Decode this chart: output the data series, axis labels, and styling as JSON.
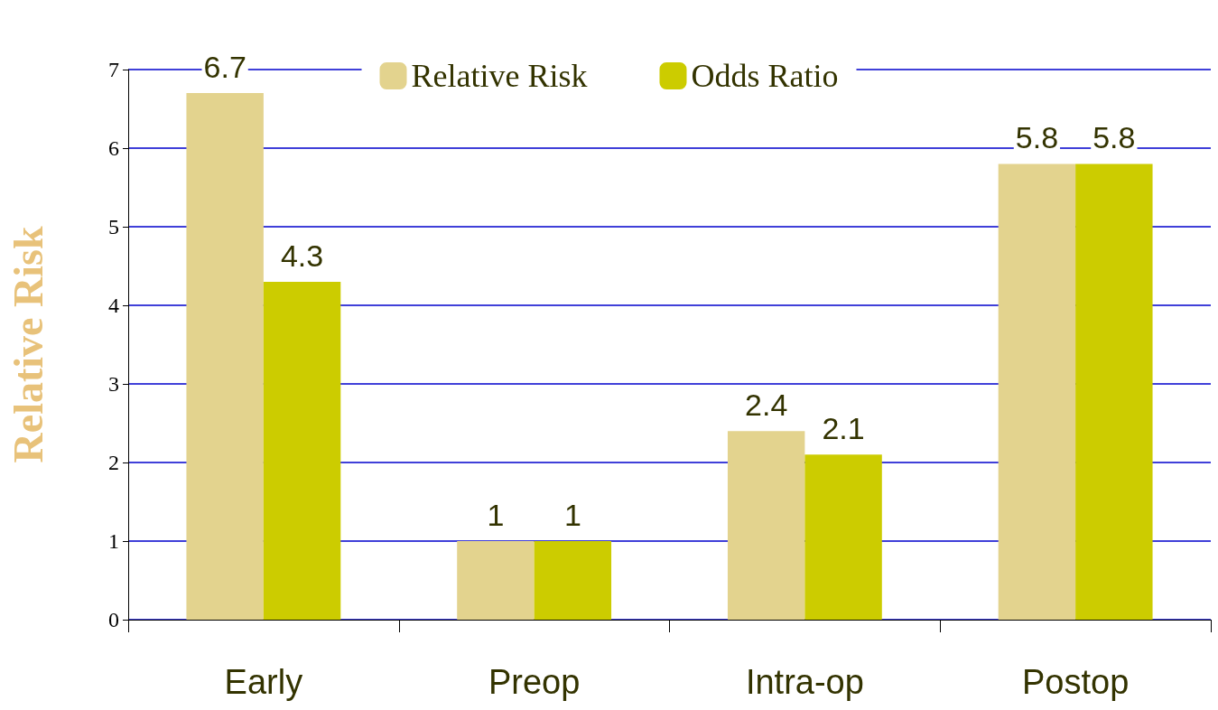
{
  "chart_data": {
    "type": "bar",
    "ylabel": "Relative Risk",
    "categories": [
      "Early",
      "Preop",
      "Intra-op",
      "Postop"
    ],
    "series": [
      {
        "name": "Relative Risk",
        "color": "#e3d38e",
        "values": [
          6.7,
          1,
          2.4,
          5.8
        ]
      },
      {
        "name": "Odds Ratio",
        "color": "#cccc00",
        "values": [
          4.3,
          1,
          2.1,
          5.8
        ]
      }
    ],
    "ylim": [
      0,
      7
    ],
    "yticks": [
      0,
      1,
      2,
      3,
      4,
      5,
      6,
      7
    ],
    "grid": "y",
    "legend": "top",
    "data_labels": true
  }
}
